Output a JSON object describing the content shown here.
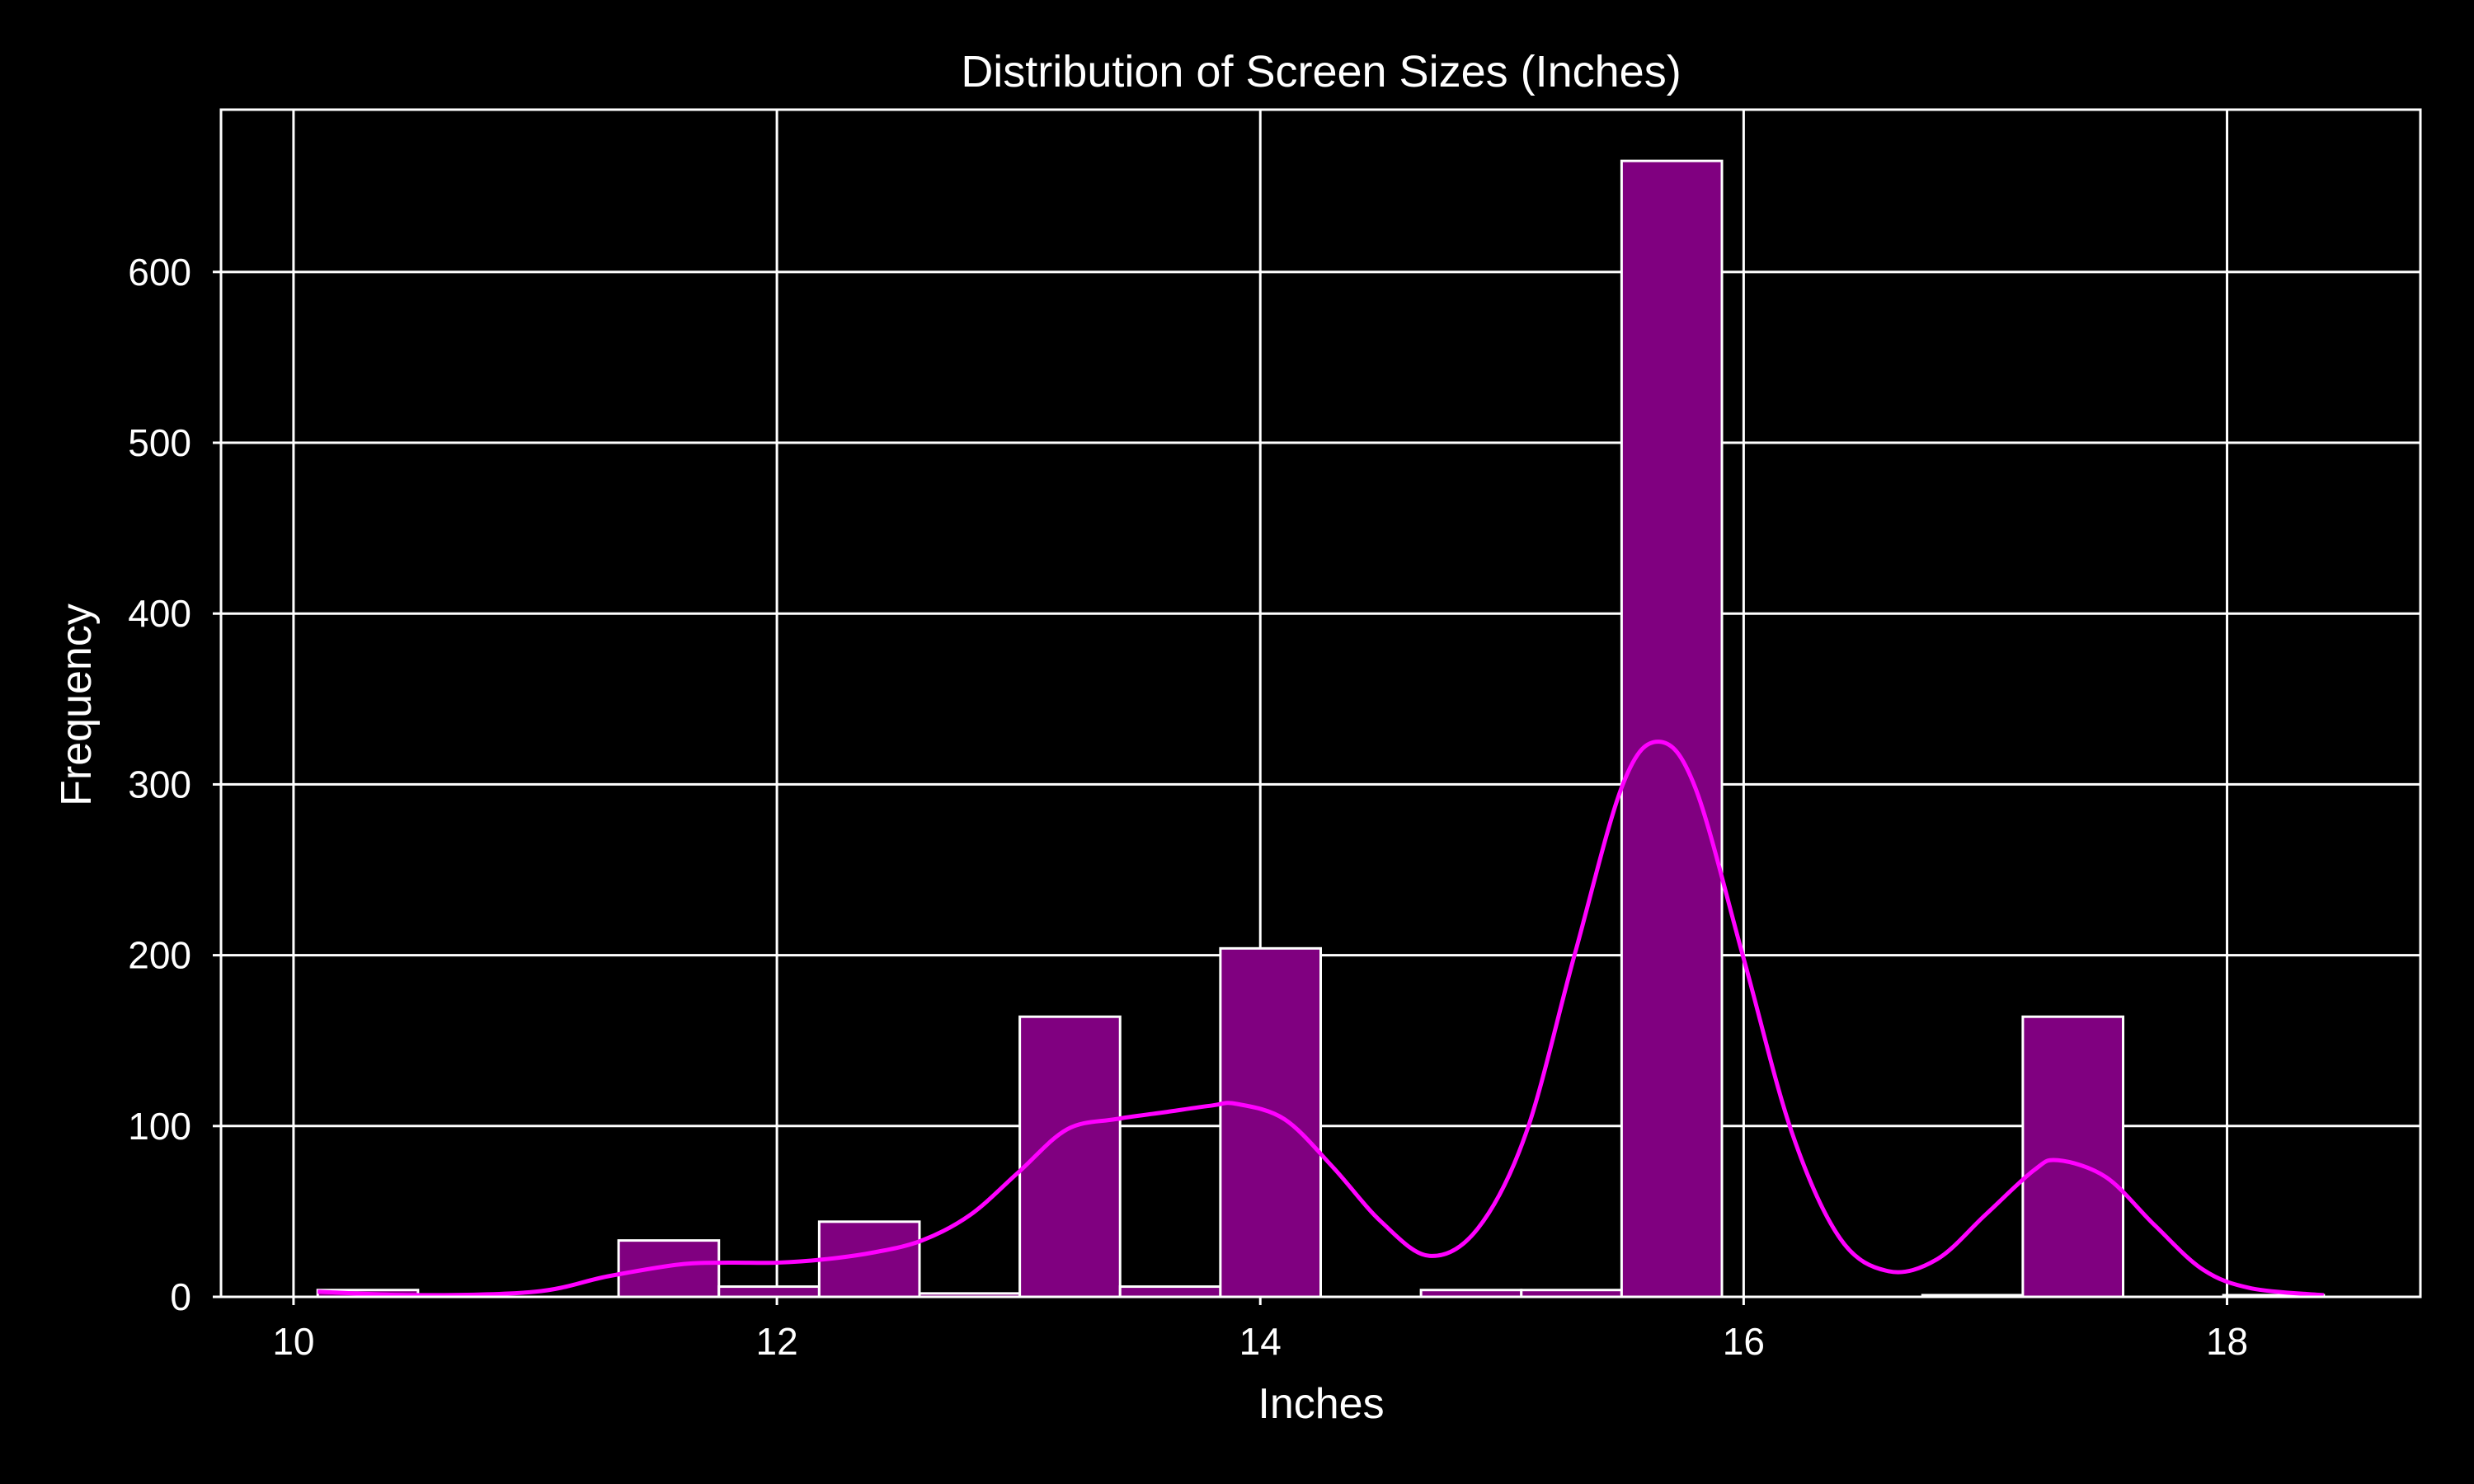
{
  "chart_data": {
    "type": "bar",
    "title": "Distribution of Screen Sizes (Inches)",
    "xlabel": "Inches",
    "ylabel": "Frequency",
    "xlim": [
      9.7,
      18.8
    ],
    "ylim": [
      0,
      695
    ],
    "x_ticks": [
      10,
      12,
      14,
      16,
      18
    ],
    "y_ticks": [
      0,
      100,
      200,
      300,
      400,
      500,
      600
    ],
    "grid": true,
    "colors": {
      "background": "#000000",
      "bar_fill": "#800080",
      "bar_edge": "#ffffff",
      "kde_line": "#ff00ff",
      "grid": "#ffffff",
      "text": "#ffffff"
    },
    "bins": [
      {
        "x0": 10.1,
        "x1": 10.515,
        "count": 4
      },
      {
        "x0": 10.515,
        "x1": 10.93,
        "count": 0
      },
      {
        "x0": 10.93,
        "x1": 11.345,
        "count": 0
      },
      {
        "x0": 11.345,
        "x1": 11.76,
        "count": 33
      },
      {
        "x0": 11.76,
        "x1": 12.175,
        "count": 6
      },
      {
        "x0": 12.175,
        "x1": 12.59,
        "count": 44
      },
      {
        "x0": 12.59,
        "x1": 13.005,
        "count": 2
      },
      {
        "x0": 13.005,
        "x1": 13.42,
        "count": 164
      },
      {
        "x0": 13.42,
        "x1": 13.835,
        "count": 6
      },
      {
        "x0": 13.835,
        "x1": 14.25,
        "count": 204
      },
      {
        "x0": 14.25,
        "x1": 14.665,
        "count": 0
      },
      {
        "x0": 14.665,
        "x1": 15.08,
        "count": 4
      },
      {
        "x0": 15.08,
        "x1": 15.495,
        "count": 4
      },
      {
        "x0": 15.495,
        "x1": 15.91,
        "count": 665
      },
      {
        "x0": 15.91,
        "x1": 16.325,
        "count": 0
      },
      {
        "x0": 16.325,
        "x1": 16.74,
        "count": 0
      },
      {
        "x0": 16.74,
        "x1": 17.155,
        "count": 1
      },
      {
        "x0": 17.155,
        "x1": 17.57,
        "count": 164
      },
      {
        "x0": 17.57,
        "x1": 17.985,
        "count": 0
      },
      {
        "x0": 17.985,
        "x1": 18.4,
        "count": 1
      }
    ],
    "kde": {
      "name": "",
      "x": [
        10.1,
        10.5,
        11.0,
        11.3,
        11.6,
        11.8,
        12.0,
        12.2,
        12.4,
        12.6,
        12.8,
        13.0,
        13.2,
        13.4,
        13.6,
        13.8,
        13.9,
        14.1,
        14.3,
        14.5,
        14.7,
        14.9,
        15.1,
        15.3,
        15.5,
        15.65,
        15.8,
        16.0,
        16.2,
        16.4,
        16.6,
        16.8,
        17.0,
        17.2,
        17.3,
        17.5,
        17.7,
        17.9,
        18.1,
        18.4
      ],
      "y": [
        3,
        1,
        3,
        12,
        19,
        20,
        20,
        22,
        26,
        33,
        48,
        73,
        98,
        104,
        108,
        112,
        113,
        104,
        76,
        44,
        24,
        40,
        96,
        200,
        300,
        325,
        298,
        198,
        96,
        34,
        15,
        22,
        48,
        74,
        80,
        70,
        42,
        16,
        5,
        1
      ]
    }
  }
}
